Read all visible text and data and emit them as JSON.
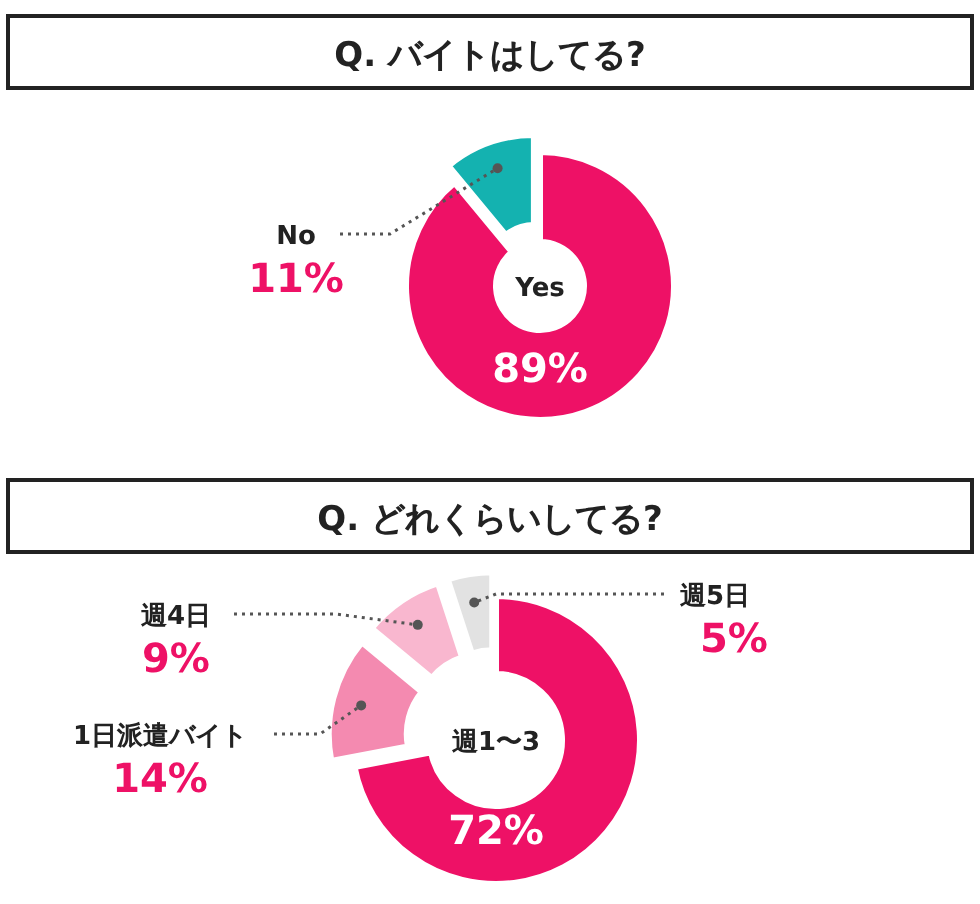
{
  "chart_data": [
    {
      "type": "donut",
      "title": "Q. バイトはしてる?",
      "categories": [
        "Yes",
        "No"
      ],
      "values": [
        89,
        11
      ],
      "colors": [
        "#ee1166",
        "#14b2b0"
      ],
      "value_labels": [
        "89%",
        "11%"
      ],
      "legend": false
    },
    {
      "type": "donut",
      "title": "Q. どれくらいしてる?",
      "categories": [
        "週1〜3",
        "1日派遣バイト",
        "週4日",
        "週5日"
      ],
      "values": [
        72,
        14,
        9,
        5
      ],
      "colors": [
        "#ee1166",
        "#f48ab0",
        "#f9b7cf",
        "#e2e2e2"
      ],
      "value_labels": [
        "72%",
        "14%",
        "9%",
        "5%"
      ],
      "legend": false
    }
  ]
}
